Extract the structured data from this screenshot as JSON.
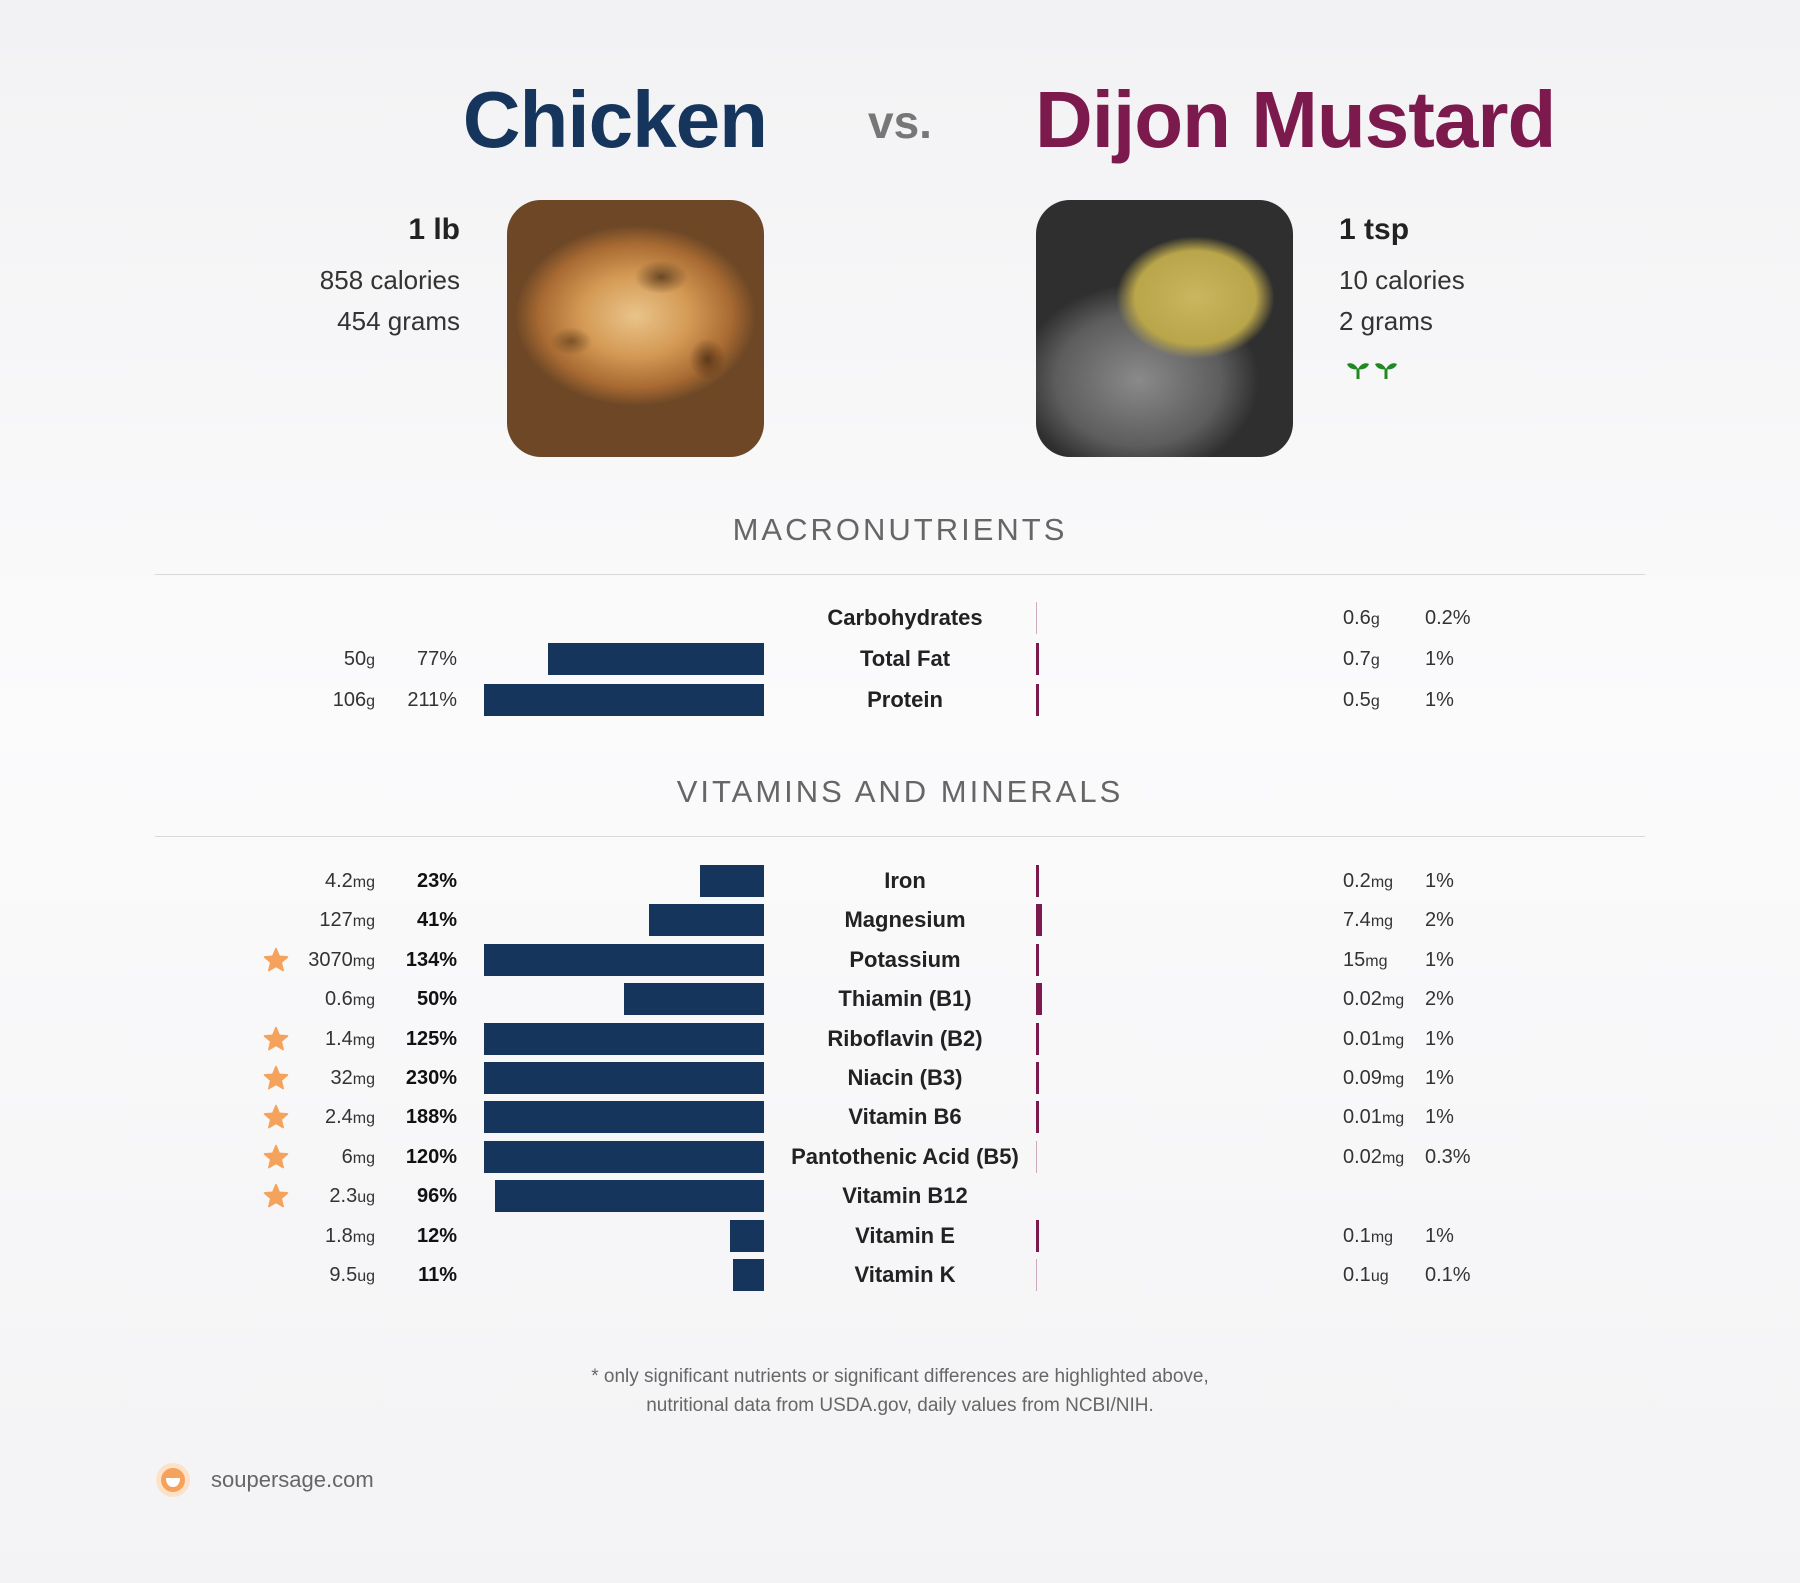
{
  "colors": {
    "chicken": "#16355c",
    "mustard": "#7d1a4d",
    "star": "#f5a25d",
    "sprout": "#1f8a1f"
  },
  "header": {
    "left_title": "Chicken",
    "vs": "vs.",
    "right_title": "Dijon Mustard"
  },
  "left_food": {
    "serving": "1 lb",
    "calories": "858 calories",
    "grams": "454 grams",
    "image_icon": "roast-chicken-photo"
  },
  "right_food": {
    "serving": "1 tsp",
    "calories": "10 calories",
    "grams": "2 grams",
    "image_icon": "dijon-mustard-spoon-photo",
    "badge_icon": "plant-based-sprout-icon"
  },
  "sections": {
    "macros": "MACRONUTRIENTS",
    "vitamins": "VITAMINS AND MINERALS"
  },
  "footnote": {
    "line1": "* only significant nutrients or significant differences are highlighted above,",
    "line2": "nutritional data from USDA.gov, daily values from NCBI/NIH."
  },
  "brand": {
    "name": "soupersage.com",
    "logo_icon": "soupersage-logo-icon"
  },
  "chart_data": {
    "type": "bar",
    "series": [
      {
        "name": "Chicken"
      },
      {
        "name": "Dijon Mustard"
      }
    ],
    "macronutrients": [
      {
        "name": "Carbohydrates",
        "left_amount": "",
        "left_unit": "",
        "left_pct_label": "",
        "left_pct": 0,
        "right_amount": "0.6",
        "right_unit": "g",
        "right_pct_label": "0.2%",
        "right_pct": 0.2
      },
      {
        "name": "Total Fat",
        "left_amount": "50",
        "left_unit": "g",
        "left_pct_label": "77%",
        "left_pct": 77,
        "right_amount": "0.7",
        "right_unit": "g",
        "right_pct_label": "1%",
        "right_pct": 1
      },
      {
        "name": "Protein",
        "left_amount": "106",
        "left_unit": "g",
        "left_pct_label": "211%",
        "left_pct": 211,
        "right_amount": "0.5",
        "right_unit": "g",
        "right_pct_label": "1%",
        "right_pct": 1
      }
    ],
    "vitamins_minerals": [
      {
        "name": "Iron",
        "star": false,
        "left_amount": "4.2",
        "left_unit": "mg",
        "left_pct_label": "23%",
        "left_pct": 23,
        "right_amount": "0.2",
        "right_unit": "mg",
        "right_pct_label": "1%",
        "right_pct": 1
      },
      {
        "name": "Magnesium",
        "star": false,
        "left_amount": "127",
        "left_unit": "mg",
        "left_pct_label": "41%",
        "left_pct": 41,
        "right_amount": "7.4",
        "right_unit": "mg",
        "right_pct_label": "2%",
        "right_pct": 2
      },
      {
        "name": "Potassium",
        "star": true,
        "left_amount": "3070",
        "left_unit": "mg",
        "left_pct_label": "134%",
        "left_pct": 134,
        "right_amount": "15",
        "right_unit": "mg",
        "right_pct_label": "1%",
        "right_pct": 1
      },
      {
        "name": "Thiamin (B1)",
        "star": false,
        "left_amount": "0.6",
        "left_unit": "mg",
        "left_pct_label": "50%",
        "left_pct": 50,
        "right_amount": "0.02",
        "right_unit": "mg",
        "right_pct_label": "2%",
        "right_pct": 2
      },
      {
        "name": "Riboflavin (B2)",
        "star": true,
        "left_amount": "1.4",
        "left_unit": "mg",
        "left_pct_label": "125%",
        "left_pct": 125,
        "right_amount": "0.01",
        "right_unit": "mg",
        "right_pct_label": "1%",
        "right_pct": 1
      },
      {
        "name": "Niacin (B3)",
        "star": true,
        "left_amount": "32",
        "left_unit": "mg",
        "left_pct_label": "230%",
        "left_pct": 230,
        "right_amount": "0.09",
        "right_unit": "mg",
        "right_pct_label": "1%",
        "right_pct": 1
      },
      {
        "name": "Vitamin B6",
        "star": true,
        "left_amount": "2.4",
        "left_unit": "mg",
        "left_pct_label": "188%",
        "left_pct": 188,
        "right_amount": "0.01",
        "right_unit": "mg",
        "right_pct_label": "1%",
        "right_pct": 1
      },
      {
        "name": "Pantothenic Acid (B5)",
        "star": true,
        "left_amount": "6",
        "left_unit": "mg",
        "left_pct_label": "120%",
        "left_pct": 120,
        "right_amount": "0.02",
        "right_unit": "mg",
        "right_pct_label": "0.3%",
        "right_pct": 0.3
      },
      {
        "name": "Vitamin B12",
        "star": true,
        "left_amount": "2.3",
        "left_unit": "ug",
        "left_pct_label": "96%",
        "left_pct": 96,
        "right_amount": "",
        "right_unit": "",
        "right_pct_label": "",
        "right_pct": 0
      },
      {
        "name": "Vitamin E",
        "star": false,
        "left_amount": "1.8",
        "left_unit": "mg",
        "left_pct_label": "12%",
        "left_pct": 12,
        "right_amount": "0.1",
        "right_unit": "mg",
        "right_pct_label": "1%",
        "right_pct": 1
      },
      {
        "name": "Vitamin K",
        "star": false,
        "left_amount": "9.5",
        "left_unit": "ug",
        "left_pct_label": "11%",
        "left_pct": 11,
        "right_amount": "0.1",
        "right_unit": "ug",
        "right_pct_label": "0.1%",
        "right_pct": 0.1
      }
    ]
  }
}
